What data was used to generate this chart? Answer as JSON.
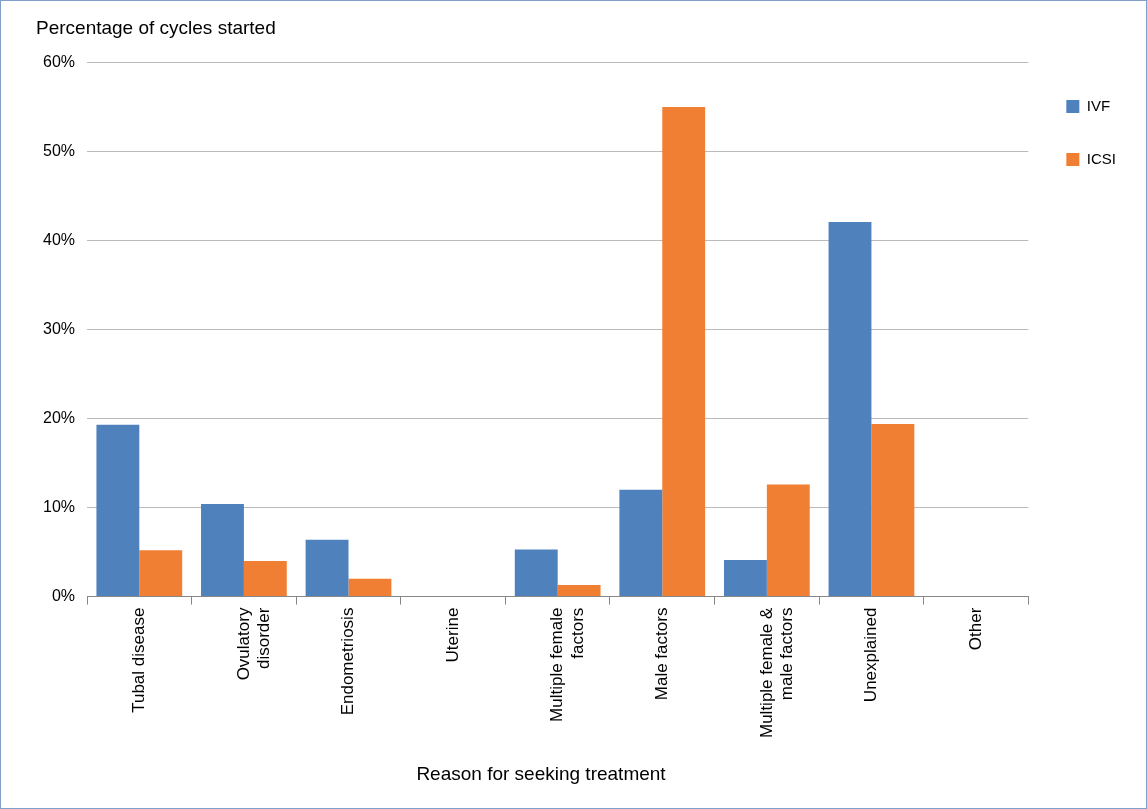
{
  "chart_data": {
    "type": "bar",
    "ylabel": "Percentage of cycles started",
    "xlabel": "Reason for seeking treatment",
    "categories": [
      "Tubal disease",
      "Ovulatory disorder",
      "Endometriosis",
      "Uterine",
      "Multiple female factors",
      "Male factors",
      "Multiple female & male factors",
      "Unexplained",
      "Other"
    ],
    "series": [
      {
        "name": "IVF",
        "color": "#4f81bd",
        "values": [
          19.3,
          10.4,
          6.4,
          0,
          5.3,
          12.0,
          4.1,
          42.1,
          0
        ]
      },
      {
        "name": "ICSI",
        "color": "#f07f33",
        "values": [
          5.2,
          4.0,
          2.0,
          0,
          1.3,
          55.0,
          12.6,
          19.4,
          0
        ]
      }
    ],
    "ylim": [
      0,
      60
    ],
    "yticks": [
      {
        "value": 0,
        "label": "0%"
      },
      {
        "value": 10,
        "label": "10%"
      },
      {
        "value": 20,
        "label": "20%"
      },
      {
        "value": 30,
        "label": "30%"
      },
      {
        "value": 40,
        "label": "40%"
      },
      {
        "value": 50,
        "label": "50%"
      },
      {
        "value": 60,
        "label": "60%"
      }
    ],
    "grid": "y",
    "legend": "right"
  }
}
